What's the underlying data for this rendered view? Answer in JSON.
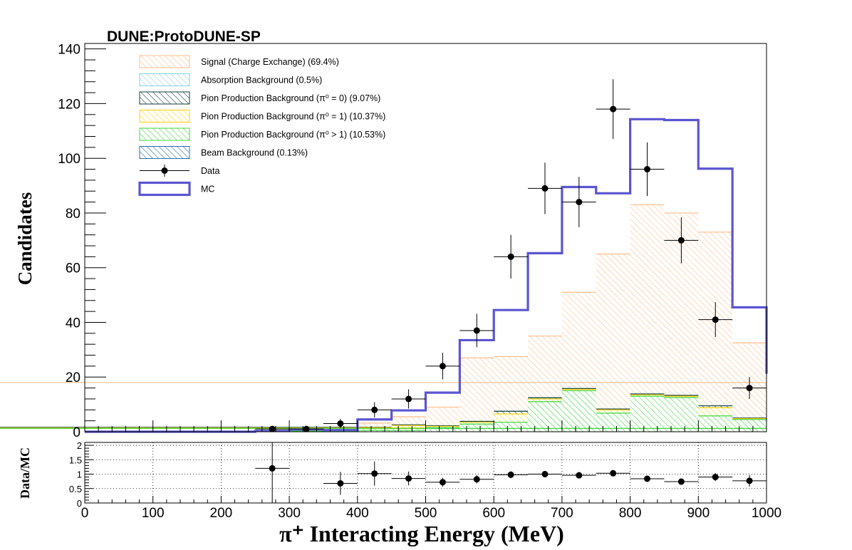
{
  "experiment_label": "DUNE:ProtoDUNE-SP",
  "colors": {
    "signal": "#ffbe8c",
    "absorption": "#86d0e6",
    "pion_prod_0": "#0f3d3d",
    "pion_prod_1": "#ffd000",
    "pion_prod_gt1": "#3cd83c",
    "beam_bkg": "#2a6fb0",
    "mc_line": "#5b55d1",
    "data": "#000000",
    "grid": "#000000"
  },
  "chart_data": [
    {
      "type": "bar",
      "subtype": "stacked-histogram",
      "ylabel": "Candidates",
      "xlim": [
        0,
        1000
      ],
      "ylim": [
        0,
        142
      ],
      "yticks": [
        0,
        20,
        40,
        60,
        80,
        100,
        120,
        140
      ],
      "bin_edges": [
        0,
        50,
        100,
        150,
        200,
        250,
        300,
        350,
        400,
        450,
        500,
        550,
        600,
        650,
        700,
        750,
        800,
        850,
        900,
        950,
        1000
      ],
      "legend": [
        {
          "key": "signal",
          "label": "Signal (Charge Exchange) (69.4%)",
          "style": "hatch"
        },
        {
          "key": "absorption",
          "label": "Absorption Background (0.5%)",
          "style": "hatch"
        },
        {
          "key": "pion_prod_0",
          "label": "Pion Production Background (π⁰ = 0) (9.07%)",
          "style": "hatch"
        },
        {
          "key": "pion_prod_1",
          "label": "Pion Production Background (π⁰ = 1) (10.37%)",
          "style": "hatch"
        },
        {
          "key": "pion_prod_gt1",
          "label": "Pion Production Background (π⁰ > 1) (10.53%)",
          "style": "hatch"
        },
        {
          "key": "beam_bkg",
          "label": "Beam Background (0.13%)",
          "style": "hatch"
        },
        {
          "key": "data",
          "label": "Data",
          "style": "marker"
        },
        {
          "key": "mc",
          "label": "MC",
          "style": "line"
        }
      ],
      "stack_cumulative": {
        "pion_prod_gt1": [
          0,
          0,
          0,
          0,
          0,
          0,
          0.3,
          0.3,
          0.5,
          0.5,
          1.5,
          2.8,
          3.5,
          11,
          15,
          6.8,
          13,
          12.5,
          5.8,
          4.5,
          1.2
        ],
        "pion_prod_1": [
          0,
          0,
          0,
          0,
          0,
          0,
          0.4,
          0.4,
          1.5,
          2.3,
          2.0,
          3.5,
          6.5,
          12,
          15.5,
          8.0,
          13.5,
          13.0,
          8.8,
          4.8,
          1.4
        ],
        "pion_prod_0": [
          0,
          0,
          0,
          0,
          0,
          0,
          0.5,
          0.5,
          1.6,
          2.5,
          2.2,
          3.8,
          7.5,
          12.4,
          15.8,
          8.3,
          13.8,
          13.3,
          9.5,
          5.0,
          1.6
        ],
        "absorption": [
          0,
          0,
          0,
          0,
          0,
          0,
          0.5,
          0.5,
          1.6,
          2.5,
          2.2,
          3.8,
          7.5,
          12.4,
          15.8,
          8.3,
          13.8,
          13.3,
          9.5,
          5.0,
          1.6
        ],
        "signal": [
          0,
          0,
          0,
          0,
          0,
          0.2,
          0.5,
          0.5,
          3.2,
          5.5,
          9.0,
          27,
          27.5,
          35,
          51,
          65,
          83,
          80,
          73,
          32.5,
          18
        ]
      },
      "mc_total": [
        0,
        0,
        0,
        0,
        0,
        0.3,
        0.8,
        0.6,
        4.5,
        7.8,
        14.3,
        33.5,
        44.5,
        65.3,
        89.5,
        87.2,
        114.3,
        114.0,
        96.2,
        45.5,
        21.2
      ],
      "data_points": {
        "x": [
          275,
          325,
          375,
          425,
          475,
          525,
          575,
          625,
          675,
          725,
          775,
          825,
          875,
          925,
          975
        ],
        "y": [
          1,
          1,
          3,
          8,
          12,
          24,
          37,
          64,
          89,
          84,
          118,
          96,
          70,
          41,
          16
        ],
        "yerr": [
          1,
          1,
          1.7,
          2.8,
          3.5,
          4.9,
          6.1,
          8,
          9.4,
          9.2,
          10.9,
          9.8,
          8.4,
          6.4,
          4
        ]
      }
    },
    {
      "type": "scatter",
      "ylabel": "Data/MC",
      "xlabel": "π⁺ Interacting Energy (MeV)",
      "xlim": [
        0,
        1000
      ],
      "ylim": [
        0,
        2.1
      ],
      "xticks": [
        0,
        100,
        200,
        300,
        400,
        500,
        600,
        700,
        800,
        900,
        1000
      ],
      "yticks": [
        "0",
        "0.5",
        "1",
        "1.5",
        "2"
      ],
      "yticks_values": [
        0,
        0.5,
        1,
        1.5,
        2
      ],
      "grid": true,
      "x": [
        275,
        375,
        425,
        475,
        525,
        575,
        625,
        675,
        725,
        775,
        825,
        875,
        925,
        975
      ],
      "y": [
        1.2,
        0.68,
        1.02,
        0.85,
        0.72,
        0.82,
        0.98,
        1.0,
        0.96,
        1.03,
        0.84,
        0.74,
        0.9,
        0.77
      ],
      "yerr": [
        1.2,
        0.4,
        0.42,
        0.24,
        0.15,
        0.14,
        0.12,
        0.11,
        0.11,
        0.09,
        0.1,
        0.09,
        0.14,
        0.2
      ]
    }
  ]
}
